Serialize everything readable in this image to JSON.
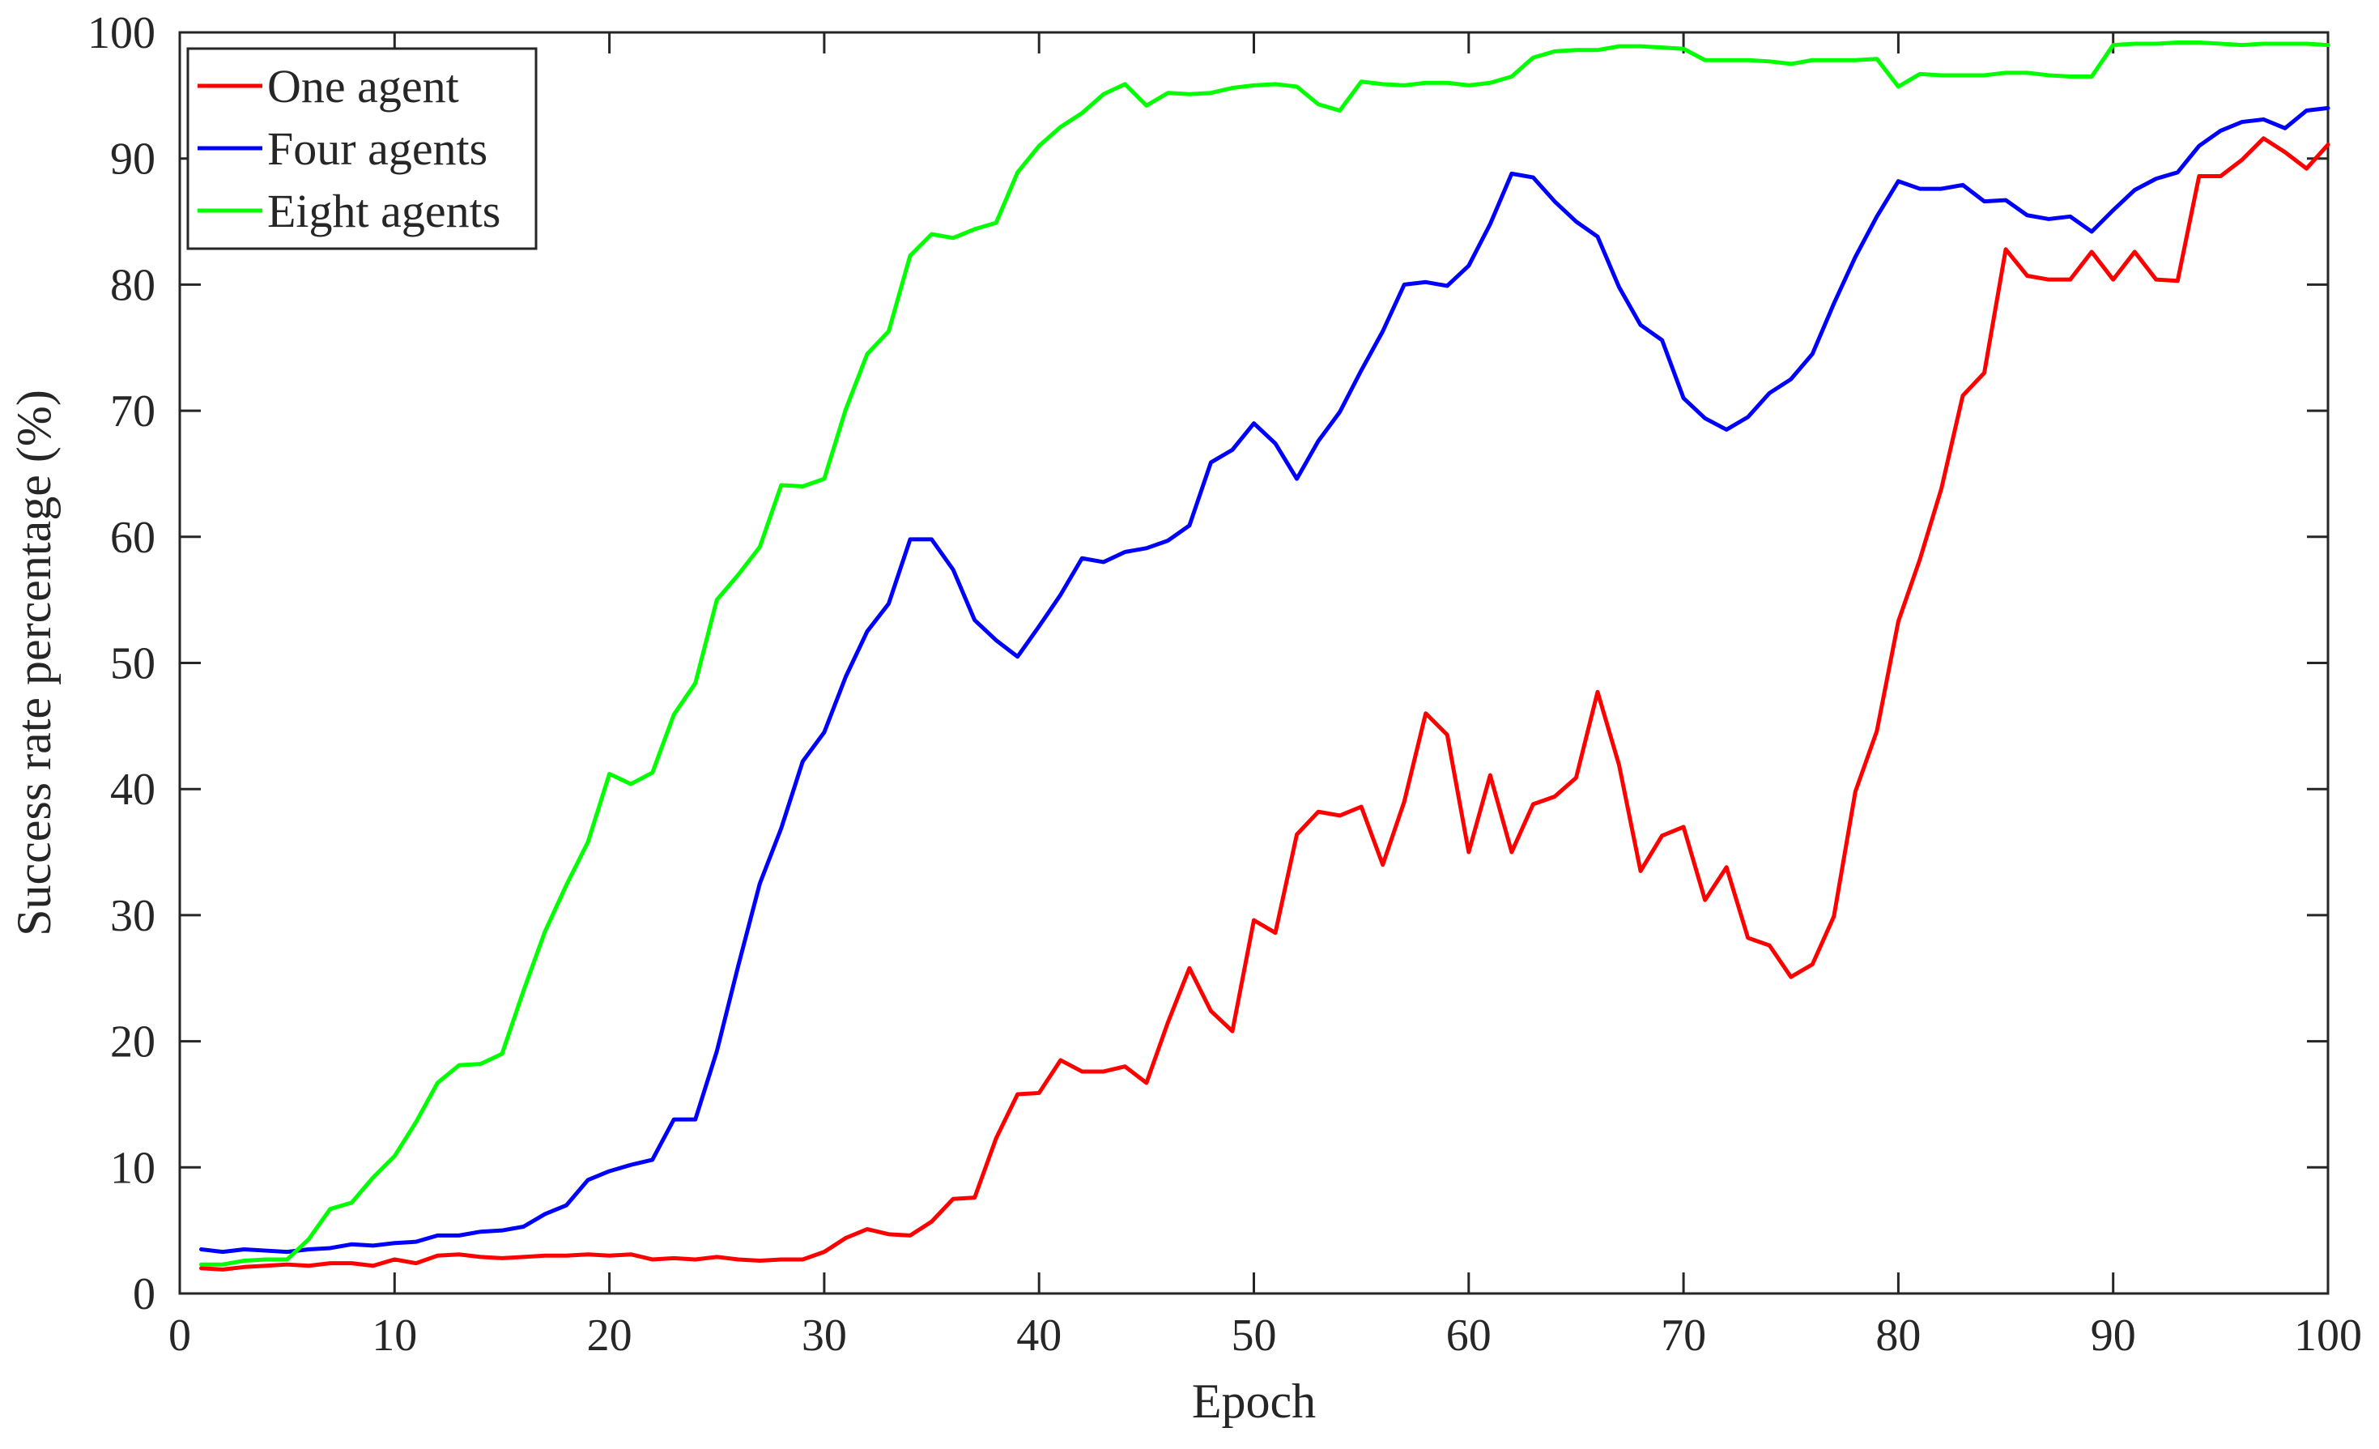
{
  "chart_data": {
    "type": "line",
    "title": "",
    "xlabel": "Epoch",
    "ylabel": "Success rate percentage (%)",
    "xlim": [
      0,
      100
    ],
    "ylim": [
      0,
      100
    ],
    "xticks": [
      0,
      10,
      20,
      30,
      40,
      50,
      60,
      70,
      80,
      90,
      100
    ],
    "yticks": [
      0,
      10,
      20,
      30,
      40,
      50,
      60,
      70,
      80,
      90,
      100
    ],
    "grid": false,
    "legend_position": "top-left",
    "x": [
      1,
      2,
      3,
      4,
      5,
      6,
      7,
      8,
      9,
      10,
      11,
      12,
      13,
      14,
      15,
      16,
      17,
      18,
      19,
      20,
      21,
      22,
      23,
      24,
      25,
      26,
      27,
      28,
      29,
      30,
      31,
      32,
      33,
      34,
      35,
      36,
      37,
      38,
      39,
      40,
      41,
      42,
      43,
      44,
      45,
      46,
      47,
      48,
      49,
      50,
      51,
      52,
      53,
      54,
      55,
      56,
      57,
      58,
      59,
      60,
      61,
      62,
      63,
      64,
      65,
      66,
      67,
      68,
      69,
      70,
      71,
      72,
      73,
      74,
      75,
      76,
      77,
      78,
      79,
      80,
      81,
      82,
      83,
      84,
      85,
      86,
      87,
      88,
      89,
      90,
      91,
      92,
      93,
      94,
      95,
      96,
      97,
      98,
      99,
      100
    ],
    "series": [
      {
        "name": "One agent",
        "color": "#ff0000",
        "values": [
          2.0,
          1.9,
          2.1,
          2.2,
          2.3,
          2.2,
          2.4,
          2.4,
          2.2,
          2.7,
          2.4,
          3.0,
          3.1,
          2.9,
          2.8,
          2.9,
          3.0,
          3.0,
          3.1,
          3.0,
          3.1,
          2.7,
          2.8,
          2.7,
          2.9,
          2.7,
          2.6,
          2.7,
          2.7,
          3.3,
          4.4,
          5.1,
          4.7,
          4.6,
          5.7,
          7.5,
          7.6,
          12.3,
          15.8,
          15.9,
          18.5,
          17.6,
          17.6,
          18.0,
          16.7,
          21.5,
          25.8,
          22.4,
          20.8,
          29.6,
          28.6,
          36.4,
          38.2,
          37.9,
          38.6,
          34.0,
          39.0,
          46.0,
          44.3,
          35.0,
          41.1,
          35.0,
          38.8,
          39.4,
          40.9,
          47.7,
          41.9,
          33.5,
          36.3,
          37.0,
          31.2,
          33.8,
          28.2,
          27.6,
          25.1,
          26.1,
          29.9,
          39.8,
          44.6,
          53.3,
          58.2,
          63.8,
          71.2,
          73.0,
          82.8,
          80.7,
          80.4,
          80.4,
          82.6,
          80.4,
          82.6,
          80.4,
          80.3,
          88.6,
          88.6,
          89.9,
          91.6,
          90.5,
          89.2,
          91.1
        ]
      },
      {
        "name": "Four agents",
        "color": "#0000ff",
        "values": [
          3.5,
          3.3,
          3.5,
          3.4,
          3.3,
          3.5,
          3.6,
          3.9,
          3.8,
          4.0,
          4.1,
          4.6,
          4.6,
          4.9,
          5.0,
          5.3,
          6.3,
          7.0,
          9.0,
          9.7,
          10.2,
          10.6,
          13.8,
          13.8,
          19.2,
          26.0,
          32.5,
          36.9,
          42.2,
          44.5,
          48.9,
          52.5,
          54.7,
          59.8,
          59.8,
          57.4,
          53.4,
          51.8,
          50.5,
          52.9,
          55.4,
          58.3,
          58.0,
          58.8,
          59.1,
          59.7,
          60.9,
          65.9,
          66.9,
          69.0,
          67.4,
          64.6,
          67.6,
          69.9,
          73.2,
          76.3,
          80.0,
          80.2,
          79.9,
          81.5,
          84.8,
          88.8,
          88.5,
          86.6,
          85.0,
          83.8,
          79.8,
          76.8,
          75.6,
          71.0,
          69.4,
          68.5,
          69.5,
          71.4,
          72.5,
          74.5,
          78.5,
          82.2,
          85.4,
          88.2,
          87.6,
          87.6,
          87.9,
          86.6,
          86.7,
          85.5,
          85.2,
          85.4,
          84.2,
          85.9,
          87.5,
          88.4,
          88.9,
          91.0,
          92.2,
          92.9,
          93.1,
          92.4,
          93.8,
          94.0
        ]
      },
      {
        "name": "Eight agents",
        "color": "#00ff00",
        "values": [
          2.3,
          2.3,
          2.6,
          2.7,
          2.7,
          4.3,
          6.7,
          7.2,
          9.2,
          10.9,
          13.6,
          16.7,
          18.1,
          18.2,
          19.0,
          24.0,
          28.7,
          32.4,
          35.8,
          41.2,
          40.4,
          41.3,
          45.9,
          48.4,
          55.0,
          57.0,
          59.2,
          64.1,
          64.0,
          64.6,
          70.1,
          74.5,
          76.3,
          82.3,
          84.0,
          83.7,
          84.4,
          84.9,
          88.9,
          91.0,
          92.5,
          93.6,
          95.1,
          95.9,
          94.2,
          95.2,
          95.1,
          95.2,
          95.6,
          95.8,
          95.9,
          95.7,
          94.3,
          93.8,
          96.1,
          95.9,
          95.8,
          96.0,
          96.0,
          95.8,
          96.0,
          96.5,
          98.0,
          98.5,
          98.6,
          98.6,
          98.9,
          98.9,
          98.8,
          98.7,
          97.8,
          97.8,
          97.8,
          97.7,
          97.5,
          97.8,
          97.8,
          97.8,
          97.9,
          95.7,
          96.7,
          96.6,
          96.6,
          96.6,
          96.8,
          96.8,
          96.6,
          96.5,
          96.5,
          99.0,
          99.1,
          99.1,
          99.2,
          99.2,
          99.1,
          99.0,
          99.1,
          99.1,
          99.1,
          99.0
        ]
      }
    ]
  }
}
